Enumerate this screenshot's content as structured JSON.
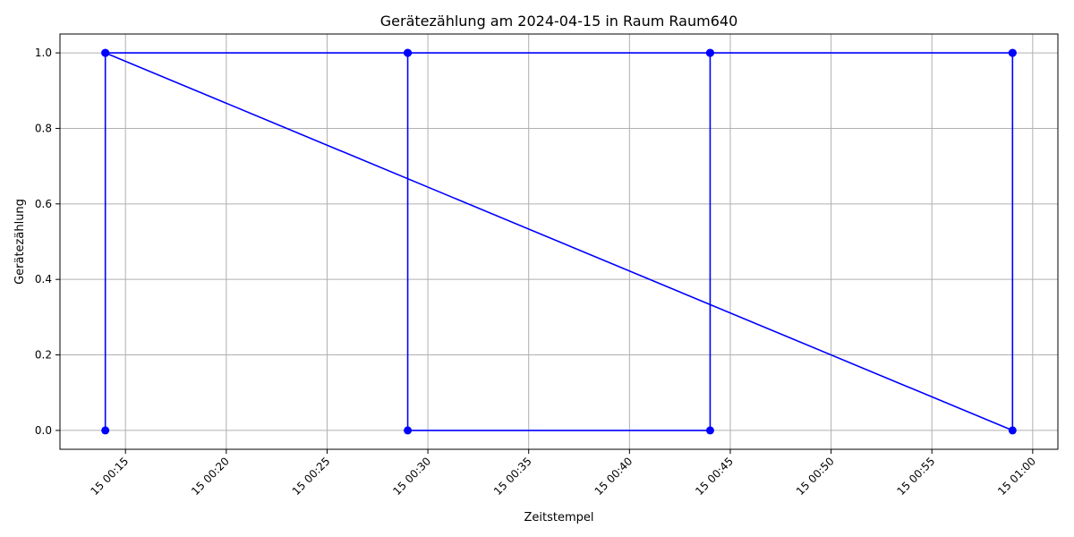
{
  "chart_data": {
    "type": "line",
    "title": "Gerätezählung am 2024-04-15 in Raum Raum640",
    "xlabel": "Zeitstempel",
    "ylabel": "Gerätezählung",
    "x_ticks": [
      "15 00:15",
      "15 00:20",
      "15 00:25",
      "15 00:30",
      "15 00:35",
      "15 00:40",
      "15 00:45",
      "15 00:50",
      "15 00:55",
      "15 01:00"
    ],
    "y_ticks": [
      "0.0",
      "0.2",
      "0.4",
      "0.6",
      "0.8",
      "1.0"
    ],
    "xlim": [
      "2024-04-15 00:11:45",
      "2024-04-15 01:01:15"
    ],
    "ylim": [
      -0.05,
      1.05
    ],
    "grid": true,
    "series": [
      {
        "color": "#0000ff",
        "marker": "circle",
        "x": [
          "2024-04-15 00:14",
          "2024-04-15 00:14",
          "2024-04-15 00:29",
          "2024-04-15 00:29",
          "2024-04-15 00:44",
          "2024-04-15 00:44",
          "2024-04-15 00:59",
          "2024-04-15 00:59",
          "2024-04-15 00:14",
          "2024-04-15 00:29",
          "2024-04-15 00:44",
          "2024-04-15 00:59"
        ],
        "values": [
          0,
          1,
          1,
          0,
          0,
          1,
          1,
          0,
          1,
          1,
          1,
          1
        ]
      }
    ]
  }
}
